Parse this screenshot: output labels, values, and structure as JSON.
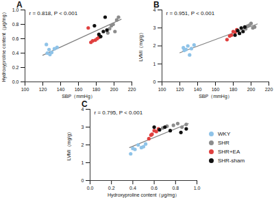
{
  "chart_data": [
    {
      "type": "scatter",
      "title": "A",
      "annotation": "r = 0.818, P < 0.001",
      "x_label": "SBP（mmHg）",
      "y_label": "Hydroxyproline content（μg/mg）",
      "xlim": [
        100,
        220
      ],
      "xticks": [
        100,
        120,
        140,
        160,
        180,
        200,
        220
      ],
      "ylim": [
        0,
        1
      ],
      "yticks": [
        {
          "value": 0,
          "label": "0.0"
        },
        0.2,
        0.4,
        0.6,
        0.8,
        {
          "value": 1,
          "label": "1.0"
        }
      ],
      "grid": false,
      "series": [
        {
          "name": "WKY",
          "color": "#8fc3e8",
          "marker": "circle",
          "x": [
            124,
            125,
            127,
            128,
            130,
            133,
            136
          ],
          "values": [
            0.52,
            0.4,
            0.45,
            0.38,
            0.41,
            0.46,
            0.48
          ]
        },
        {
          "name": "SHR",
          "color": "#8c8c8c",
          "marker": "circle",
          "x": [
            193,
            195,
            197,
            199,
            201,
            203,
            205
          ],
          "values": [
            0.68,
            0.74,
            0.78,
            0.8,
            0.7,
            0.86,
            0.9
          ]
        },
        {
          "name": "SHR+EA",
          "color": "#e0403f",
          "marker": "circle",
          "x": [
            171,
            174,
            176,
            179,
            181,
            183
          ],
          "values": [
            0.75,
            0.55,
            0.57,
            0.58,
            0.6,
            0.62
          ]
        },
        {
          "name": "SHR-sham",
          "color": "#111111",
          "marker": "circle",
          "x": [
            178,
            183,
            185,
            188,
            190,
            192
          ],
          "values": [
            0.78,
            0.66,
            0.63,
            0.7,
            0.9,
            0.72
          ]
        },
        {
          "type": "line",
          "color": "#808080",
          "x": [
            120,
            208
          ],
          "values": [
            0.37,
            0.87
          ]
        }
      ]
    },
    {
      "type": "scatter",
      "title": "B",
      "annotation": "r = 0.951, P < 0.001",
      "x_label": "SBP（mmHg）",
      "y_label": "LVMI（mg/g）",
      "xlim": [
        100,
        220
      ],
      "xticks": [
        100,
        120,
        140,
        160,
        180,
        200,
        220
      ],
      "ylim": [
        0,
        4
      ],
      "yticks": [
        0,
        1,
        2,
        3,
        4
      ],
      "grid": false,
      "series": [
        {
          "name": "WKY",
          "color": "#8fc3e8",
          "marker": "circle",
          "x": [
            124,
            125,
            127,
            129,
            131,
            133,
            136
          ],
          "values": [
            1.9,
            1.75,
            1.8,
            2.0,
            1.5,
            1.85,
            2.05
          ]
        },
        {
          "name": "SHR",
          "color": "#8c8c8c",
          "marker": "circle",
          "x": [
            194,
            196,
            198,
            200,
            202,
            204
          ],
          "values": [
            2.95,
            3.1,
            3.15,
            3.25,
            3.0,
            3.05
          ]
        },
        {
          "name": "SHR+EA",
          "color": "#e0403f",
          "marker": "circle",
          "x": [
            173,
            176,
            178,
            180,
            182,
            184
          ],
          "values": [
            2.35,
            2.55,
            2.6,
            2.8,
            2.75,
            2.9
          ]
        },
        {
          "name": "SHR-sham",
          "color": "#111111",
          "marker": "circle",
          "x": [
            182,
            185,
            187,
            189,
            191,
            193
          ],
          "values": [
            2.6,
            2.85,
            2.7,
            3.0,
            2.8,
            3.05
          ]
        },
        {
          "type": "line",
          "color": "#808080",
          "x": [
            120,
            207
          ],
          "values": [
            1.62,
            3.22
          ]
        }
      ]
    },
    {
      "type": "scatter",
      "title": "C",
      "annotation": "r = 0.795, P < 0.001",
      "x_label": "Hydroxyproline content（μg/mg）",
      "y_label": "LVMI（mg/g）",
      "xlim": [
        0,
        1
      ],
      "xticks": [
        {
          "value": 0,
          "label": "0.0"
        },
        0.2,
        0.4,
        0.6,
        0.8,
        {
          "value": 1,
          "label": "1.0"
        }
      ],
      "ylim": [
        0,
        4
      ],
      "yticks": [
        0,
        1,
        2,
        3,
        4
      ],
      "grid": false,
      "legend": "right",
      "series": [
        {
          "name": "WKY",
          "color": "#8fc3e8",
          "marker": "circle",
          "x": [
            0.38,
            0.4,
            0.42,
            0.45,
            0.48,
            0.5,
            0.52
          ],
          "values": [
            1.5,
            1.8,
            1.75,
            2.0,
            1.85,
            1.9,
            2.05
          ]
        },
        {
          "name": "SHR",
          "color": "#8c8c8c",
          "marker": "circle",
          "x": [
            0.68,
            0.72,
            0.78,
            0.82,
            0.86,
            0.9
          ],
          "values": [
            2.95,
            3.05,
            3.1,
            3.2,
            3.0,
            3.15
          ]
        },
        {
          "name": "SHR+EA",
          "color": "#e0403f",
          "marker": "circle",
          "x": [
            0.55,
            0.57,
            0.58,
            0.6,
            0.62,
            0.64
          ],
          "values": [
            2.35,
            2.55,
            2.6,
            2.8,
            2.75,
            2.9
          ]
        },
        {
          "name": "SHR-sham",
          "color": "#111111",
          "marker": "circle",
          "x": [
            0.6,
            0.65,
            0.7,
            0.75,
            0.85,
            0.9
          ],
          "values": [
            3.0,
            2.85,
            3.0,
            2.8,
            2.7,
            2.9
          ]
        },
        {
          "type": "line",
          "color": "#808080",
          "x": [
            0.37,
            0.92
          ],
          "values": [
            1.85,
            3.2
          ]
        }
      ]
    }
  ]
}
